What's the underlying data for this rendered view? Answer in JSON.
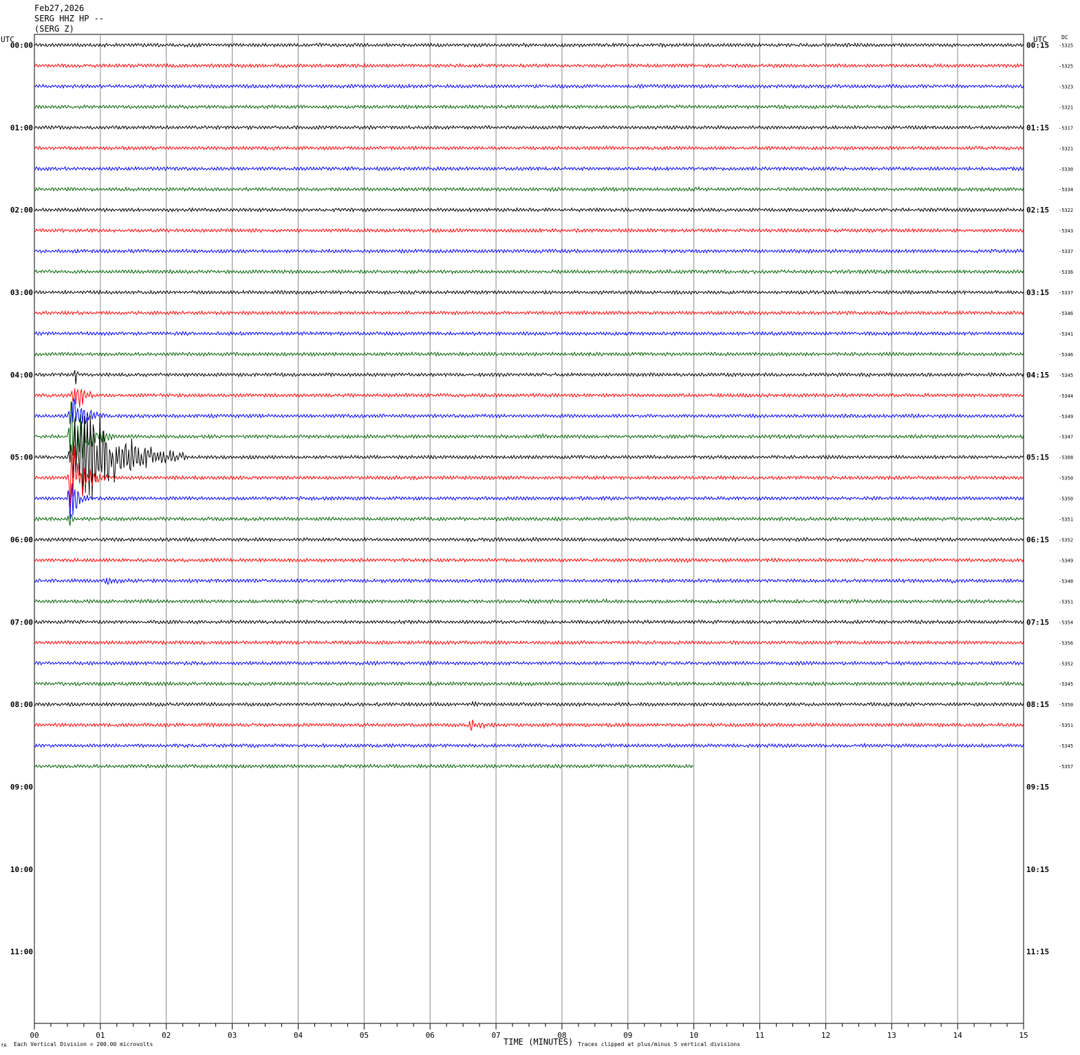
{
  "header": {
    "date": "Feb27,2026",
    "channel": "SERG HHZ HP --",
    "station": "(SERG Z)"
  },
  "left_axis_label": "UTC",
  "right_axis_label": "UTC",
  "dc_label": "DC",
  "footer": {
    "x_axis_title": "TIME (MINUTES)",
    "scale_note": "Each Vertical Division =  200.00 microvolts",
    "clip_note": "Traces clipped at plus/minus 5 vertical divisions",
    "corner_mark": "†A"
  },
  "chart_data": {
    "type": "line",
    "title": "",
    "xlabel": "TIME (MINUTES)",
    "xlim": [
      0,
      15
    ],
    "x_ticks": [
      "00",
      "01",
      "02",
      "03",
      "04",
      "05",
      "06",
      "07",
      "08",
      "09",
      "10",
      "11",
      "12",
      "13",
      "14",
      "15"
    ],
    "rows_total": 48,
    "row_minutes": 15,
    "trace_colors": [
      "#000000",
      "#ff0000",
      "#0000ff",
      "#006400"
    ],
    "left_hour_labels": [
      "00:00",
      "01:00",
      "02:00",
      "03:00",
      "04:00",
      "05:00",
      "06:00",
      "07:00",
      "08:00",
      "09:00",
      "10:00",
      "11:00"
    ],
    "right_hour_labels": [
      "00:15",
      "01:15",
      "02:15",
      "03:15",
      "04:15",
      "05:15",
      "06:15",
      "07:15",
      "08:15",
      "09:15",
      "10:15",
      "11:15"
    ],
    "dc_offsets": [
      "-5325",
      "-5325",
      "-5323",
      "-5321",
      "-5317",
      "-5321",
      "-5330",
      "-5334",
      "-5322",
      "-5343",
      "-5337",
      "-5336",
      "-5337",
      "-5346",
      "-5341",
      "-5346",
      "-5345",
      "-5344",
      "-5349",
      "-5347",
      "-5308",
      "-5350",
      "-5350",
      "-5351",
      "-5352",
      "-5349",
      "-5348",
      "-5351",
      "-5354",
      "-5356",
      "-5352",
      "-5345",
      "-5350",
      "-5351",
      "-5345",
      "-5357"
    ],
    "data_rows": 36,
    "last_row_end_minute": 10.0,
    "events": [
      {
        "row": 7,
        "start": 9.9,
        "end": 10.9,
        "amp": 4
      },
      {
        "row": 19,
        "start": 7.55,
        "end": 8.4,
        "amp": 4
      },
      {
        "row": 16,
        "start": 0.6,
        "end": 0.75,
        "amp": 18
      },
      {
        "row": 17,
        "start": 0.55,
        "end": 1.0,
        "amp": 30
      },
      {
        "row": 18,
        "start": 0.5,
        "end": 1.1,
        "amp": 40
      },
      {
        "row": 19,
        "start": 0.5,
        "end": 1.2,
        "amp": 60
      },
      {
        "row": 20,
        "start": 0.5,
        "end": 2.3,
        "amp": 90
      },
      {
        "row": 21,
        "start": 0.5,
        "end": 1.1,
        "amp": 55
      },
      {
        "row": 22,
        "start": 0.5,
        "end": 0.9,
        "amp": 35
      },
      {
        "row": 23,
        "start": 0.5,
        "end": 0.7,
        "amp": 12
      },
      {
        "row": 25,
        "start": 9.7,
        "end": 10.6,
        "amp": 4
      },
      {
        "row": 26,
        "start": 1.0,
        "end": 1.8,
        "amp": 6
      },
      {
        "row": 26,
        "start": 13.9,
        "end": 14.1,
        "amp": 6
      },
      {
        "row": 27,
        "start": 1.7,
        "end": 1.95,
        "amp": 6
      },
      {
        "row": 27,
        "start": 7.8,
        "end": 8.0,
        "amp": 4
      },
      {
        "row": 27,
        "start": 8.6,
        "end": 8.95,
        "amp": 4
      },
      {
        "row": 29,
        "start": 1.9,
        "end": 2.1,
        "amp": 3
      },
      {
        "row": 32,
        "start": 6.6,
        "end": 7.2,
        "amp": 5
      },
      {
        "row": 32,
        "start": 8.2,
        "end": 8.8,
        "amp": 3
      },
      {
        "row": 33,
        "start": 6.5,
        "end": 7.5,
        "amp": 8
      },
      {
        "row": 34,
        "start": 5.8,
        "end": 6.0,
        "amp": 3
      },
      {
        "row": 34,
        "start": 12.5,
        "end": 13.3,
        "amp": 3
      },
      {
        "row": 34,
        "start": 14.0,
        "end": 14.3,
        "amp": 3
      }
    ]
  }
}
